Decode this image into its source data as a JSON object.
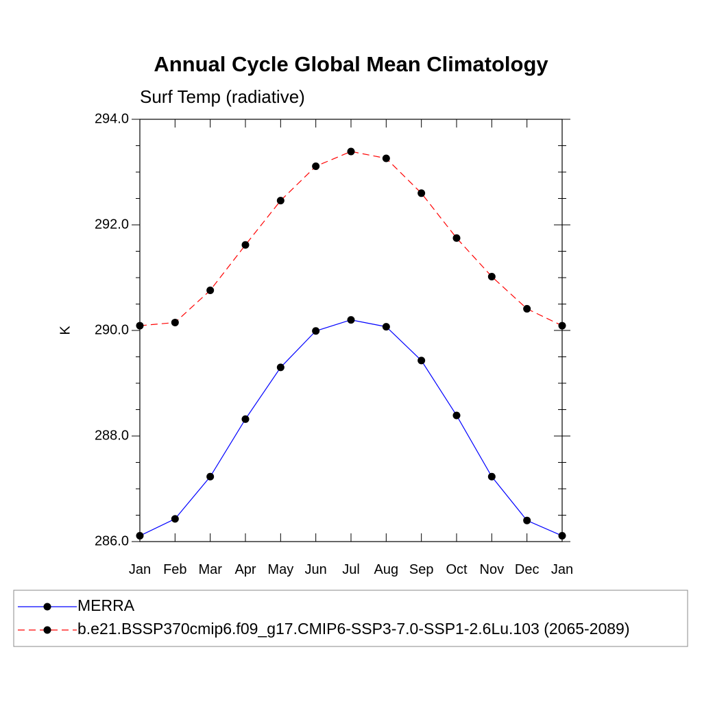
{
  "chart_data": {
    "type": "line",
    "title": "Annual Cycle Global Mean Climatology",
    "subtitle": "Surf Temp (radiative)",
    "xlabel": "",
    "ylabel": "K",
    "categories": [
      "Jan",
      "Feb",
      "Mar",
      "Apr",
      "May",
      "Jun",
      "Jul",
      "Aug",
      "Sep",
      "Oct",
      "Nov",
      "Dec",
      "Jan"
    ],
    "ylim": [
      286.0,
      294.0
    ],
    "yticks": [
      "286.0",
      "288.0",
      "290.0",
      "292.0",
      "294.0"
    ],
    "grid": false,
    "legend_position": "bottom",
    "series": [
      {
        "name": "MERRA",
        "color": "#0000ff",
        "dash": "solid",
        "marker": "filled-circle",
        "values": [
          286.11,
          286.43,
          287.23,
          288.32,
          289.3,
          289.99,
          290.2,
          290.07,
          289.43,
          288.39,
          287.23,
          286.4,
          286.11
        ]
      },
      {
        "name": "b.e21.BSSP370cmip6.f09_g17.CMIP6-SSP3-7.0-SSP1-2.6Lu.103 (2065-2089)",
        "color": "#ff0000",
        "dash": "dashed",
        "marker": "filled-circle",
        "values": [
          290.09,
          290.15,
          290.76,
          291.62,
          292.46,
          293.11,
          293.39,
          293.26,
          292.6,
          291.75,
          291.02,
          290.41,
          290.09
        ]
      }
    ]
  }
}
